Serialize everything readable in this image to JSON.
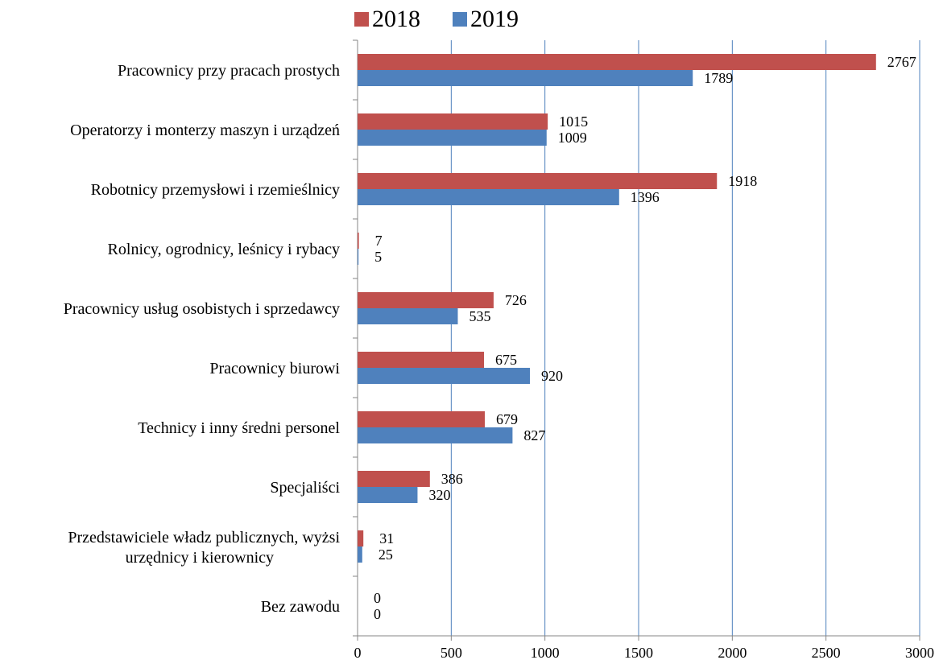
{
  "chart_data": {
    "type": "bar",
    "orientation": "horizontal",
    "categories": [
      "Pracownicy przy pracach prostych",
      "Operatorzy i monterzy maszyn i urządzeń",
      "Robotnicy przemysłowi i rzemieślnicy",
      "Rolnicy, ogrodnicy, leśnicy i rybacy",
      "Pracownicy usług osobistych i sprzedawcy",
      "Pracownicy biurowi",
      "Technicy i inny średni personel",
      "Specjaliści",
      "Przedstawiciele władz publicznych, wyżsi urzędnicy i kierownicy",
      "Bez zawodu"
    ],
    "series": [
      {
        "name": "2018",
        "color": "#C0504D",
        "values": [
          2767,
          1015,
          1918,
          7,
          726,
          675,
          679,
          386,
          31,
          0
        ]
      },
      {
        "name": "2019",
        "color": "#4F81BD",
        "values": [
          1789,
          1009,
          1396,
          5,
          535,
          920,
          827,
          320,
          25,
          0
        ]
      }
    ],
    "xlim": [
      0,
      3000
    ],
    "xticks": [
      0,
      500,
      1000,
      1500,
      2000,
      2500,
      3000
    ],
    "grid": "vertical",
    "gridColor": "#4F81BD",
    "legend": "top",
    "title": "",
    "xlabel": "",
    "ylabel": ""
  }
}
